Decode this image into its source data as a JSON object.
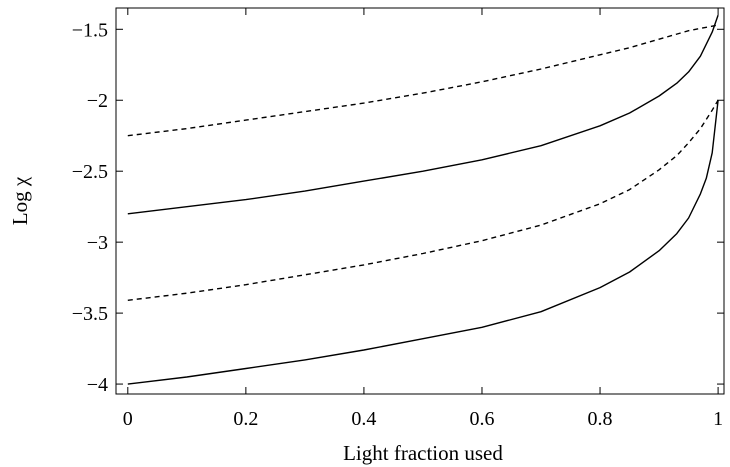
{
  "chart_data": {
    "type": "line",
    "title": "",
    "xlabel": "Light fraction used",
    "ylabel": "Log χ",
    "xlim": [
      -0.02,
      1.01
    ],
    "ylim": [
      -4.07,
      -1.35
    ],
    "x_ticks": [
      {
        "value": 0,
        "label": "0"
      },
      {
        "value": 0.2,
        "label": "0.2"
      },
      {
        "value": 0.4,
        "label": "0.4"
      },
      {
        "value": 0.6,
        "label": "0.6"
      },
      {
        "value": 0.8,
        "label": "0.8"
      },
      {
        "value": 1,
        "label": "1"
      }
    ],
    "y_ticks": [
      {
        "value": -4,
        "label": "−4"
      },
      {
        "value": -3.5,
        "label": "−3.5"
      },
      {
        "value": -3,
        "label": "−3"
      },
      {
        "value": -2.5,
        "label": "−2.5"
      },
      {
        "value": -2,
        "label": "−2"
      },
      {
        "value": -1.5,
        "label": "−1.5"
      }
    ],
    "grid": false,
    "series": [
      {
        "style": "dashed",
        "color": "#000000",
        "x": [
          0,
          0.1,
          0.2,
          0.3,
          0.4,
          0.5,
          0.6,
          0.7,
          0.8,
          0.85,
          0.9,
          0.95,
          1.0
        ],
        "y": [
          -2.25,
          -2.2,
          -2.14,
          -2.08,
          -2.02,
          -1.95,
          -1.87,
          -1.78,
          -1.68,
          -1.63,
          -1.57,
          -1.51,
          -1.47
        ]
      },
      {
        "style": "solid",
        "color": "#000000",
        "x": [
          0,
          0.1,
          0.2,
          0.3,
          0.4,
          0.5,
          0.6,
          0.7,
          0.8,
          0.85,
          0.9,
          0.93,
          0.95,
          0.97,
          0.99,
          1.0
        ],
        "y": [
          -2.8,
          -2.75,
          -2.7,
          -2.64,
          -2.57,
          -2.5,
          -2.42,
          -2.32,
          -2.18,
          -2.09,
          -1.97,
          -1.88,
          -1.8,
          -1.69,
          -1.52,
          -1.4
        ]
      },
      {
        "style": "dashed",
        "color": "#000000",
        "x": [
          0,
          0.1,
          0.2,
          0.3,
          0.4,
          0.5,
          0.6,
          0.7,
          0.8,
          0.85,
          0.9,
          0.93,
          0.95,
          0.97,
          0.99,
          1.0
        ],
        "y": [
          -3.41,
          -3.36,
          -3.3,
          -3.23,
          -3.16,
          -3.08,
          -2.99,
          -2.88,
          -2.73,
          -2.63,
          -2.49,
          -2.39,
          -2.3,
          -2.2,
          -2.07,
          -2.0
        ]
      },
      {
        "style": "solid",
        "color": "#000000",
        "x": [
          0,
          0.1,
          0.2,
          0.3,
          0.4,
          0.5,
          0.6,
          0.7,
          0.8,
          0.85,
          0.9,
          0.93,
          0.95,
          0.97,
          0.98,
          0.99,
          1.0
        ],
        "y": [
          -4.0,
          -3.95,
          -3.89,
          -3.83,
          -3.76,
          -3.68,
          -3.6,
          -3.49,
          -3.32,
          -3.21,
          -3.06,
          -2.94,
          -2.83,
          -2.66,
          -2.55,
          -2.37,
          -2.0
        ]
      }
    ]
  }
}
